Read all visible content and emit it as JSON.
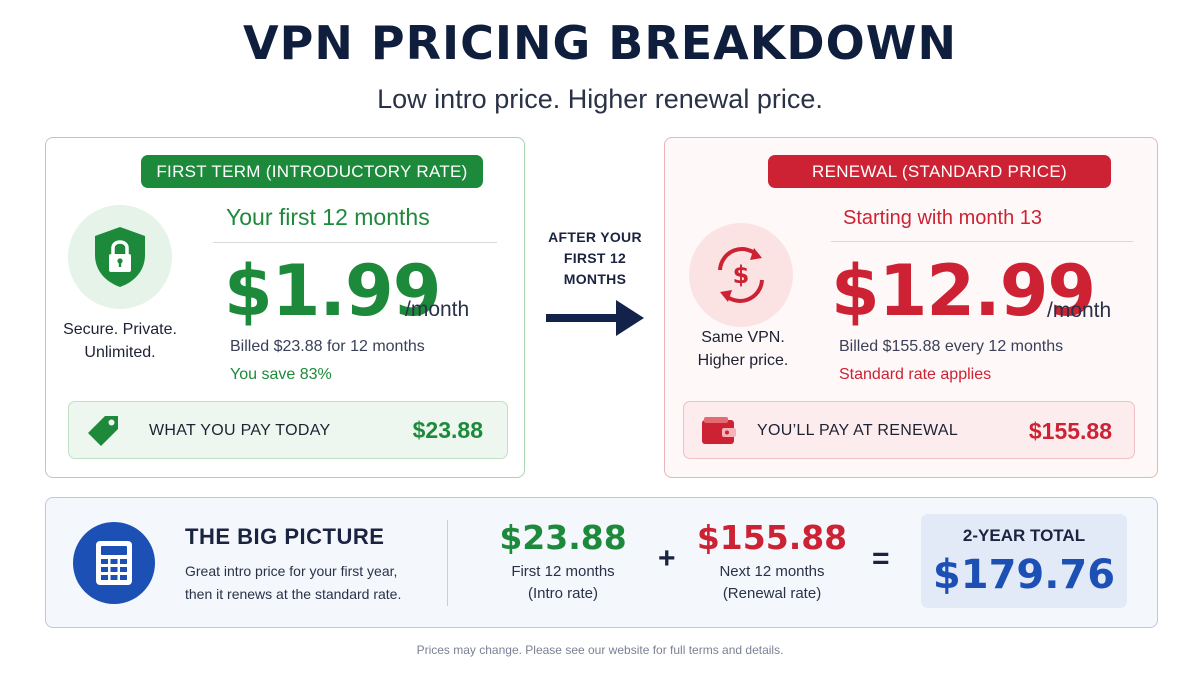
{
  "header": {
    "title": "VPN PRICING BREAKDOWN",
    "subtitle": "Low intro price. Higher renewal price."
  },
  "first_term": {
    "pill": "FIRST TERM (INTRODUCTORY RATE)",
    "icon": "lock-shield-icon",
    "side_text_line1": "Secure. Private.",
    "side_text_line2": "Unlimited.",
    "period": "Your first 12 months",
    "price": "$1.99",
    "per": "/month",
    "billed": "Billed $23.88 for 12 months",
    "note": "You save 83%",
    "pay_icon": "price-tag-icon",
    "pay_label": "WHAT YOU PAY TODAY",
    "pay_value": "$23.88",
    "color": "#1d8a3b"
  },
  "transition": {
    "line1": "AFTER YOUR",
    "line2": "FIRST 12",
    "line3": "MONTHS",
    "icon": "arrow-right-icon"
  },
  "renewal": {
    "pill": "RENEWAL (STANDARD PRICE)",
    "icon": "dollar-cycle-icon",
    "side_text_line1": "Same VPN.",
    "side_text_line2": "Higher price.",
    "period": "Starting with month 13",
    "price": "$12.99",
    "per": "/month",
    "billed": "Billed $155.88 every 12 months",
    "note": "Standard rate applies",
    "pay_icon": "wallet-icon",
    "pay_label": "YOU’LL PAY AT RENEWAL",
    "pay_value": "$155.88",
    "color": "#cc2233"
  },
  "big_picture": {
    "icon": "calculator-icon",
    "title": "THE BIG PICTURE",
    "desc_line1": "Great intro price for your first year,",
    "desc_line2": "then it renews at the standard rate.",
    "first_amount": "$23.88",
    "first_label1": "First 12 months",
    "first_label2": "(Intro rate)",
    "plus": "+",
    "second_amount": "$155.88",
    "second_label1": "Next 12 months",
    "second_label2": "(Renewal rate)",
    "equals": "=",
    "total_label": "2-YEAR TOTAL",
    "total_value": "$179.76"
  },
  "footer": "Prices may change. Please see our website for full terms and details."
}
